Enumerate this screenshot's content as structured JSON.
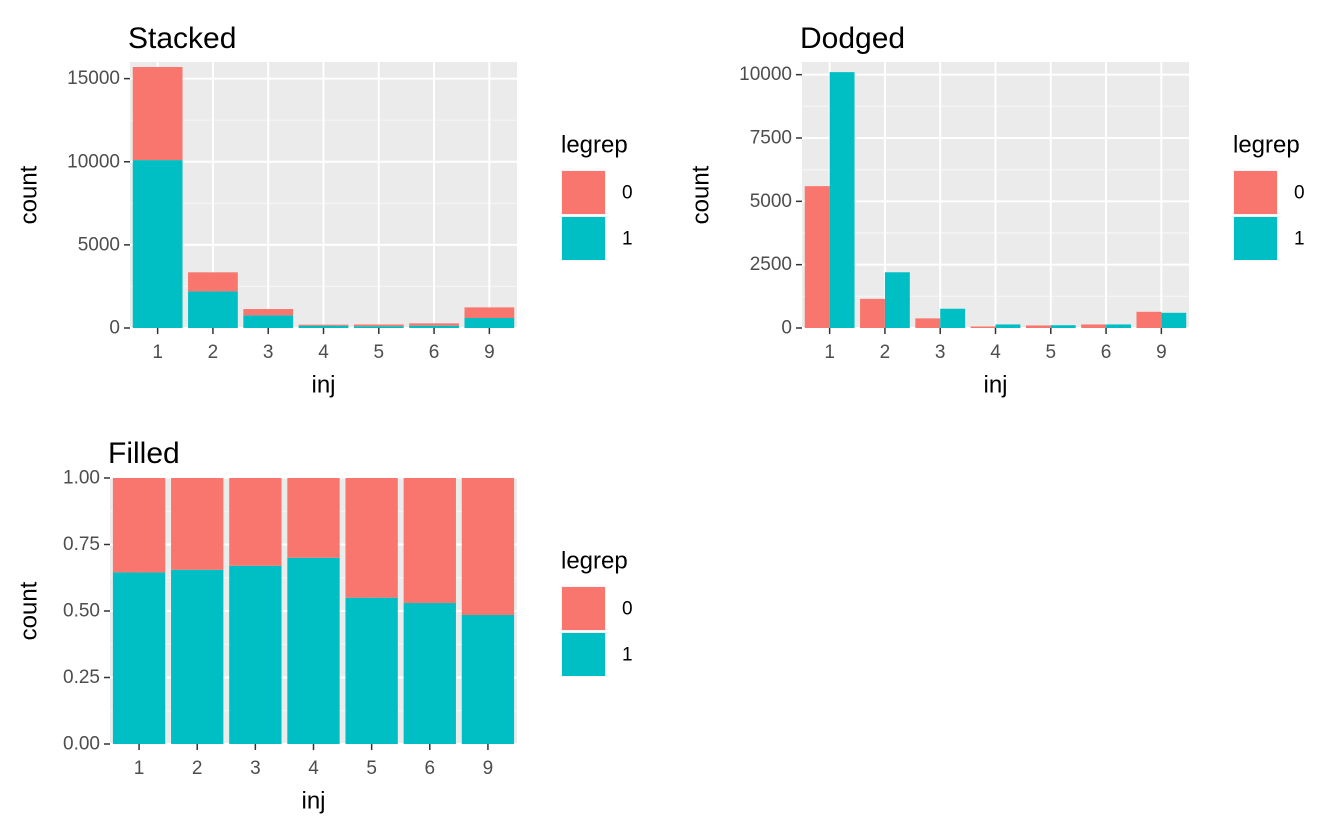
{
  "colors": {
    "panel_bg": "#ebebeb",
    "grid_major": "#ffffff",
    "grid_minor": "#f5f5f5",
    "tick": "#333333"
  },
  "chart_data": [
    {
      "type": "bar",
      "position": "stack",
      "title": "Stacked",
      "xlabel": "inj",
      "ylabel": "count",
      "categories": [
        "1",
        "2",
        "3",
        "4",
        "5",
        "6",
        "9"
      ],
      "series": [
        {
          "name": "0",
          "color": "#F8766D",
          "values": [
            5600,
            1150,
            380,
            60,
            100,
            140,
            640
          ]
        },
        {
          "name": "1",
          "color": "#00BFC4",
          "values": [
            10100,
            2200,
            760,
            140,
            110,
            140,
            600
          ]
        }
      ],
      "ylim": [
        0,
        16000
      ],
      "yticks": [
        0,
        5000,
        10000,
        15000
      ],
      "ytick_labels": [
        "0",
        "5000",
        "10000",
        "15000"
      ],
      "legend": {
        "title": "legrep",
        "labels": [
          "0",
          "1"
        ],
        "placement": "right"
      },
      "grid": true
    },
    {
      "type": "bar",
      "position": "dodge",
      "title": "Dodged",
      "xlabel": "inj",
      "ylabel": "count",
      "categories": [
        "1",
        "2",
        "3",
        "4",
        "5",
        "6",
        "9"
      ],
      "series": [
        {
          "name": "0",
          "color": "#F8766D",
          "values": [
            5600,
            1150,
            380,
            60,
            100,
            140,
            640
          ]
        },
        {
          "name": "1",
          "color": "#00BFC4",
          "values": [
            10100,
            2200,
            760,
            140,
            110,
            140,
            600
          ]
        }
      ],
      "ylim": [
        0,
        10500
      ],
      "yticks": [
        0,
        2500,
        5000,
        7500,
        10000
      ],
      "ytick_labels": [
        "0",
        "2500",
        "5000",
        "7500",
        "10000"
      ],
      "legend": {
        "title": "legrep",
        "labels": [
          "0",
          "1"
        ],
        "placement": "right"
      },
      "grid": true
    },
    {
      "type": "bar",
      "position": "fill",
      "title": "Filled",
      "xlabel": "inj",
      "ylabel": "count",
      "categories": [
        "1",
        "2",
        "3",
        "4",
        "5",
        "6",
        "9"
      ],
      "series": [
        {
          "name": "0",
          "color": "#F8766D",
          "values": [
            0.355,
            0.345,
            0.33,
            0.3,
            0.45,
            0.47,
            0.515
          ]
        },
        {
          "name": "1",
          "color": "#00BFC4",
          "values": [
            0.645,
            0.655,
            0.67,
            0.7,
            0.55,
            0.53,
            0.485
          ]
        }
      ],
      "ylim": [
        0,
        1
      ],
      "yticks": [
        0,
        0.25,
        0.5,
        0.75,
        1
      ],
      "ytick_labels": [
        "0.00",
        "0.25",
        "0.50",
        "0.75",
        "1.00"
      ],
      "legend": {
        "title": "legrep",
        "labels": [
          "0",
          "1"
        ],
        "placement": "right"
      },
      "grid": true
    }
  ]
}
